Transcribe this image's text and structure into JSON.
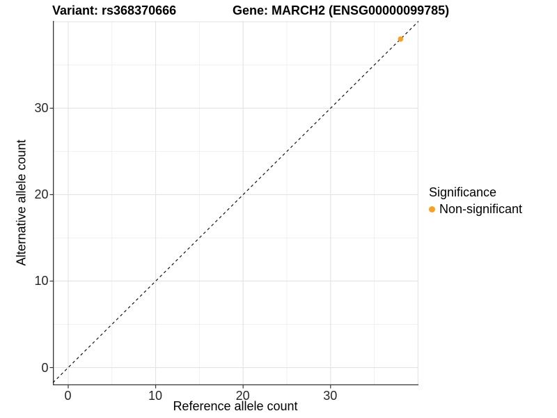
{
  "titles": {
    "left": "Variant: rs368370666",
    "right": "Gene: MARCH2 (ENSG00000099785)"
  },
  "axes": {
    "x_label": "Reference allele count",
    "y_label": "Alternative allele count"
  },
  "legend": {
    "title": "Significance",
    "items": [
      {
        "label": "Non-significant",
        "color": "#FAA01E"
      }
    ]
  },
  "chart_data": {
    "type": "scatter",
    "title": "Variant: rs368370666 | Gene: MARCH2 (ENSG00000099785)",
    "xlabel": "Reference allele count",
    "ylabel": "Alternative allele count",
    "x_ticks": [
      0,
      10,
      20,
      30
    ],
    "y_ticks": [
      0,
      10,
      20,
      30
    ],
    "x_domain": [
      -1.75,
      40.05
    ],
    "y_domain": [
      -2.05,
      40.1
    ],
    "grid_major": [
      0,
      10,
      20,
      30,
      40
    ],
    "grid_minor": [
      5,
      15,
      25,
      35
    ],
    "grid_on": true,
    "legend_position": "right",
    "reference_line": {
      "slope": 1,
      "intercept": 0,
      "style": "dashed",
      "color": "#111111"
    },
    "series": [
      {
        "name": "Non-significant",
        "color": "#FAA01E",
        "points": [
          {
            "x": 38,
            "y": 38
          }
        ]
      }
    ],
    "point_radius": 3.8,
    "colors": {
      "grid_major": "#E3E3E3",
      "grid_minor": "#F0F0F0",
      "axis_line": "#333333",
      "tick_text": "#262626"
    }
  }
}
